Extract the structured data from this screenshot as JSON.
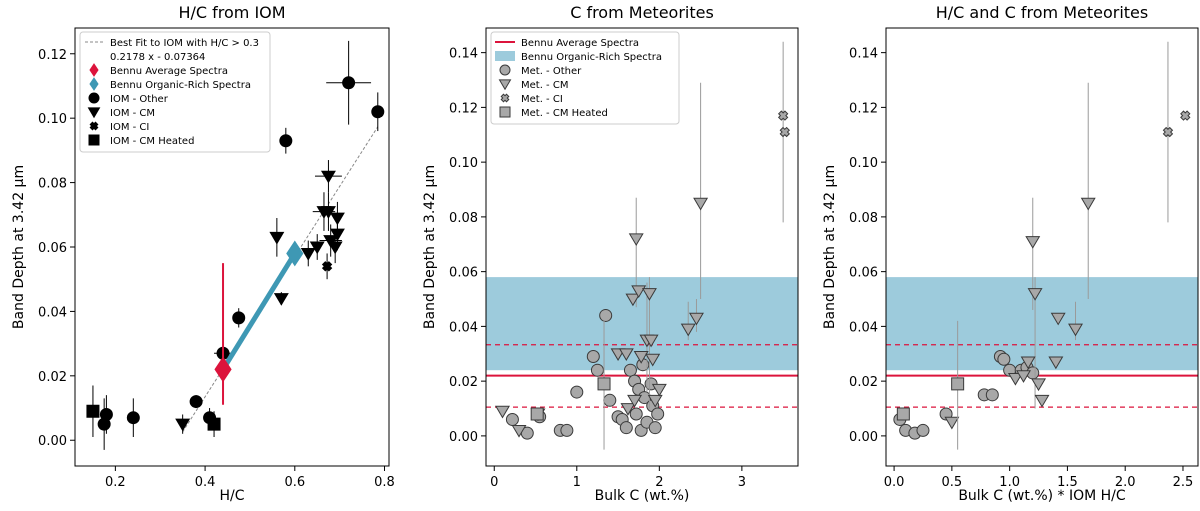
{
  "figure": {
    "background": "#ffffff"
  },
  "colors": {
    "bennu_avg": "#dc143c",
    "bennu_org": "#3e98b4",
    "band": "#9dcbdc",
    "iom": "#000000",
    "met_fill": "#a8a8a8",
    "met_edge": "#3a3a3a",
    "errbar_met": "#9a9a9a",
    "fit_line": "#888888"
  },
  "chart_data": [
    {
      "type": "scatter",
      "title": "H/C from IOM",
      "xlabel": "H/C",
      "ylabel": "Band Depth at 3.42 µm",
      "xlim": [
        0.11,
        0.81
      ],
      "ylim": [
        -0.008,
        0.128
      ],
      "xticks": [
        0.2,
        0.4,
        0.6,
        0.8
      ],
      "xtick_labels": [
        "0.2",
        "0.4",
        "0.6",
        "0.8"
      ],
      "yticks": [
        0.0,
        0.02,
        0.04,
        0.06,
        0.08,
        0.1,
        0.12
      ],
      "ytick_labels": [
        "0.00",
        "0.02",
        "0.04",
        "0.06",
        "0.08",
        "0.10",
        "0.12"
      ],
      "legend": {
        "position": "upper-left",
        "entries": [
          {
            "label": "Best Fit to IOM with H/C > 0.3",
            "marker": "dashline"
          },
          {
            "label": "0.2178 x - 0.07364",
            "marker": "none"
          },
          {
            "label": "Bennu Average Spectra",
            "marker": "diamond-red"
          },
          {
            "label": "Bennu Organic-Rich Spectra",
            "marker": "diamond-blue"
          },
          {
            "label": "IOM - Other",
            "marker": "circle"
          },
          {
            "label": "IOM - CM",
            "marker": "tri"
          },
          {
            "label": "IOM - CI",
            "marker": "x"
          },
          {
            "label": "IOM - CM Heated",
            "marker": "square"
          }
        ]
      },
      "fit": {
        "slope": 0.2178,
        "intercept": -0.07364,
        "x_range": [
          0.35,
          0.785
        ]
      },
      "bennu_avg": {
        "x": 0.44,
        "y": 0.022,
        "yerr_low": 0.011,
        "yerr_high": 0.033
      },
      "bennu_org_line": {
        "x": [
          0.44,
          0.6
        ],
        "y": [
          0.022,
          0.058
        ]
      },
      "bennu_org_marker": {
        "x": 0.6,
        "y": 0.058
      },
      "series": [
        {
          "name": "IOM - Other",
          "marker": "circle",
          "points": [
            {
              "x": 0.175,
              "y": 0.005,
              "ye": 0.008
            },
            {
              "x": 0.18,
              "y": 0.008,
              "ye": 0.006
            },
            {
              "x": 0.24,
              "y": 0.007,
              "ye": 0.006
            },
            {
              "x": 0.38,
              "y": 0.012,
              "ye": 0.002
            },
            {
              "x": 0.41,
              "y": 0.007,
              "ye": 0.003
            },
            {
              "x": 0.44,
              "y": 0.027,
              "ye": 0.003,
              "xe": 0.02
            },
            {
              "x": 0.475,
              "y": 0.038,
              "ye": 0.003
            },
            {
              "x": 0.58,
              "y": 0.093,
              "ye": 0.004
            },
            {
              "x": 0.72,
              "y": 0.111,
              "ye": 0.013,
              "xe": 0.05
            },
            {
              "x": 0.785,
              "y": 0.102,
              "ye": 0.006
            }
          ]
        },
        {
          "name": "IOM - CM",
          "marker": "tri",
          "points": [
            {
              "x": 0.35,
              "y": 0.005,
              "ye": 0.003
            },
            {
              "x": 0.56,
              "y": 0.063,
              "ye": 0.006
            },
            {
              "x": 0.57,
              "y": 0.044,
              "ye": 0.002
            },
            {
              "x": 0.63,
              "y": 0.058,
              "ye": 0.004
            },
            {
              "x": 0.65,
              "y": 0.06,
              "ye": 0.004
            },
            {
              "x": 0.665,
              "y": 0.071,
              "ye": 0.006,
              "xe": 0.025
            },
            {
              "x": 0.675,
              "y": 0.071,
              "ye": 0.006
            },
            {
              "x": 0.675,
              "y": 0.082,
              "ye": 0.005,
              "xe": 0.03
            },
            {
              "x": 0.68,
              "y": 0.062,
              "ye": 0.005,
              "xe": 0.025
            },
            {
              "x": 0.69,
              "y": 0.06,
              "ye": 0.005
            },
            {
              "x": 0.695,
              "y": 0.064,
              "ye": 0.005
            },
            {
              "x": 0.695,
              "y": 0.069,
              "ye": 0.005
            }
          ]
        },
        {
          "name": "IOM - CI",
          "marker": "x",
          "points": [
            {
              "x": 0.672,
              "y": 0.054,
              "ye": 0.004
            }
          ]
        },
        {
          "name": "IOM - CM Heated",
          "marker": "square",
          "points": [
            {
              "x": 0.15,
              "y": 0.009,
              "ye": 0.008
            },
            {
              "x": 0.42,
              "y": 0.005,
              "ye": 0.004
            }
          ]
        }
      ]
    },
    {
      "type": "scatter",
      "title": "C from Meteorites",
      "xlabel": "Bulk C (wt.%)",
      "ylabel": "Band Depth at 3.42 µm",
      "xlim": [
        -0.1,
        3.68
      ],
      "ylim": [
        -0.011,
        0.149
      ],
      "xticks": [
        0,
        1,
        2,
        3
      ],
      "xtick_labels": [
        "0",
        "1",
        "2",
        "3"
      ],
      "yticks": [
        0.0,
        0.02,
        0.04,
        0.06,
        0.08,
        0.1,
        0.12,
        0.14
      ],
      "ytick_labels": [
        "0.00",
        "0.02",
        "0.04",
        "0.06",
        "0.08",
        "0.10",
        "0.12",
        "0.14"
      ],
      "legend": {
        "position": "upper-left",
        "entries": [
          {
            "label": "Bennu Average Spectra",
            "marker": "redline"
          },
          {
            "label": "Bennu Organic-Rich Spectra",
            "marker": "bluepatch"
          },
          {
            "label": "Met. - Other",
            "marker": "circle"
          },
          {
            "label": "Met. - CM",
            "marker": "tri"
          },
          {
            "label": "Met. - CI",
            "marker": "x"
          },
          {
            "label": "Met. - CM Heated",
            "marker": "square"
          }
        ]
      },
      "bennu_avg": {
        "y": 0.022,
        "low": 0.0105,
        "high": 0.0333
      },
      "bennu_org_band": {
        "low": 0.024,
        "high": 0.058
      },
      "series": [
        {
          "name": "Met. - Other",
          "marker": "circle",
          "points": [
            {
              "x": 0.22,
              "y": 0.006
            },
            {
              "x": 0.4,
              "y": 0.001
            },
            {
              "x": 0.55,
              "y": 0.007
            },
            {
              "x": 0.8,
              "y": 0.002
            },
            {
              "x": 0.88,
              "y": 0.002
            },
            {
              "x": 1.0,
              "y": 0.016
            },
            {
              "x": 1.2,
              "y": 0.029
            },
            {
              "x": 1.25,
              "y": 0.024
            },
            {
              "x": 1.35,
              "y": 0.044
            },
            {
              "x": 1.4,
              "y": 0.013
            },
            {
              "x": 1.5,
              "y": 0.007
            },
            {
              "x": 1.55,
              "y": 0.006
            },
            {
              "x": 1.6,
              "y": 0.003
            },
            {
              "x": 1.65,
              "y": 0.024
            },
            {
              "x": 1.7,
              "y": 0.02
            },
            {
              "x": 1.72,
              "y": 0.008
            },
            {
              "x": 1.75,
              "y": 0.017
            },
            {
              "x": 1.78,
              "y": 0.002
            },
            {
              "x": 1.8,
              "y": 0.026
            },
            {
              "x": 1.82,
              "y": 0.014
            },
            {
              "x": 1.85,
              "y": 0.005
            },
            {
              "x": 1.9,
              "y": 0.019
            },
            {
              "x": 1.92,
              "y": 0.011
            },
            {
              "x": 1.95,
              "y": 0.003
            },
            {
              "x": 1.98,
              "y": 0.008
            }
          ]
        },
        {
          "name": "Met. - CM",
          "marker": "tri",
          "points": [
            {
              "x": 0.1,
              "y": 0.009
            },
            {
              "x": 0.3,
              "y": 0.002
            },
            {
              "x": 0.53,
              "y": 0.008
            },
            {
              "x": 1.5,
              "y": 0.03
            },
            {
              "x": 1.6,
              "y": 0.03
            },
            {
              "x": 1.68,
              "y": 0.05
            },
            {
              "x": 1.72,
              "y": 0.072,
              "ylo": 0.047,
              "yhi": 0.087
            },
            {
              "x": 1.75,
              "y": 0.053
            },
            {
              "x": 1.78,
              "y": 0.029
            },
            {
              "x": 1.85,
              "y": 0.035,
              "ylo": 0.016,
              "yhi": 0.056
            },
            {
              "x": 1.88,
              "y": 0.052,
              "ylo": 0.01,
              "yhi": 0.058
            },
            {
              "x": 1.9,
              "y": 0.035
            },
            {
              "x": 1.92,
              "y": 0.028
            },
            {
              "x": 1.95,
              "y": 0.013
            },
            {
              "x": 2.0,
              "y": 0.017
            },
            {
              "x": 2.35,
              "y": 0.039,
              "ylo": 0.035,
              "yhi": 0.049
            },
            {
              "x": 2.45,
              "y": 0.043,
              "ylo": 0.038,
              "yhi": 0.05
            },
            {
              "x": 2.5,
              "y": 0.085,
              "ylo": 0.05,
              "yhi": 0.129
            },
            {
              "x": 1.62,
              "y": 0.01
            },
            {
              "x": 1.7,
              "y": 0.013
            }
          ]
        },
        {
          "name": "Met. - CI",
          "marker": "x",
          "points": [
            {
              "x": 3.5,
              "y": 0.117,
              "ylo": 0.078,
              "yhi": 0.144
            },
            {
              "x": 3.52,
              "y": 0.111
            }
          ]
        },
        {
          "name": "Met. - CM Heated",
          "marker": "square",
          "points": [
            {
              "x": 0.52,
              "y": 0.008
            },
            {
              "x": 1.33,
              "y": 0.019,
              "ylo": -0.005,
              "yhi": 0.042
            }
          ]
        }
      ]
    },
    {
      "type": "scatter",
      "title": "H/C and C from Meteorites",
      "xlabel": "Bulk C (wt.%) * IOM H/C",
      "ylabel": "Band Depth at 3.42 µm",
      "xlim": [
        -0.07,
        2.63
      ],
      "ylim": [
        -0.011,
        0.149
      ],
      "xticks": [
        0.0,
        0.5,
        1.0,
        1.5,
        2.0,
        2.5
      ],
      "xtick_labels": [
        "0.0",
        "0.5",
        "1.0",
        "1.5",
        "2.0",
        "2.5"
      ],
      "yticks": [
        0.0,
        0.02,
        0.04,
        0.06,
        0.08,
        0.1,
        0.12,
        0.14
      ],
      "ytick_labels": [
        "0.00",
        "0.02",
        "0.04",
        "0.06",
        "0.08",
        "0.10",
        "0.12",
        "0.14"
      ],
      "bennu_avg": {
        "y": 0.022,
        "low": 0.0105,
        "high": 0.0333
      },
      "bennu_org_band": {
        "low": 0.024,
        "high": 0.058
      },
      "series": [
        {
          "name": "Met. - Other",
          "marker": "circle",
          "points": [
            {
              "x": 0.05,
              "y": 0.006
            },
            {
              "x": 0.1,
              "y": 0.002
            },
            {
              "x": 0.18,
              "y": 0.001
            },
            {
              "x": 0.25,
              "y": 0.002
            },
            {
              "x": 0.45,
              "y": 0.008
            },
            {
              "x": 0.78,
              "y": 0.015
            },
            {
              "x": 0.85,
              "y": 0.015
            },
            {
              "x": 0.92,
              "y": 0.029
            },
            {
              "x": 0.95,
              "y": 0.028
            },
            {
              "x": 1.0,
              "y": 0.024
            },
            {
              "x": 1.1,
              "y": 0.024
            },
            {
              "x": 1.15,
              "y": 0.025
            },
            {
              "x": 1.2,
              "y": 0.023
            }
          ]
        },
        {
          "name": "Met. - CM",
          "marker": "tri",
          "points": [
            {
              "x": 0.5,
              "y": 0.005
            },
            {
              "x": 1.05,
              "y": 0.021
            },
            {
              "x": 1.12,
              "y": 0.022
            },
            {
              "x": 1.16,
              "y": 0.027
            },
            {
              "x": 1.2,
              "y": 0.071,
              "ylo": 0.046,
              "yhi": 0.087
            },
            {
              "x": 1.22,
              "y": 0.052,
              "ylo": 0.01,
              "yhi": 0.058
            },
            {
              "x": 1.25,
              "y": 0.019
            },
            {
              "x": 1.28,
              "y": 0.013
            },
            {
              "x": 1.4,
              "y": 0.027
            },
            {
              "x": 1.42,
              "y": 0.043
            },
            {
              "x": 1.57,
              "y": 0.039,
              "ylo": 0.035,
              "yhi": 0.049
            },
            {
              "x": 1.68,
              "y": 0.085,
              "ylo": 0.05,
              "yhi": 0.129
            }
          ]
        },
        {
          "name": "Met. - CI",
          "marker": "x",
          "points": [
            {
              "x": 2.37,
              "y": 0.111,
              "ylo": 0.078,
              "yhi": 0.144
            },
            {
              "x": 2.52,
              "y": 0.117
            }
          ]
        },
        {
          "name": "Met. - CM Heated",
          "marker": "square",
          "points": [
            {
              "x": 0.08,
              "y": 0.008
            },
            {
              "x": 0.55,
              "y": 0.019,
              "ylo": -0.005,
              "yhi": 0.042
            }
          ]
        }
      ]
    }
  ]
}
